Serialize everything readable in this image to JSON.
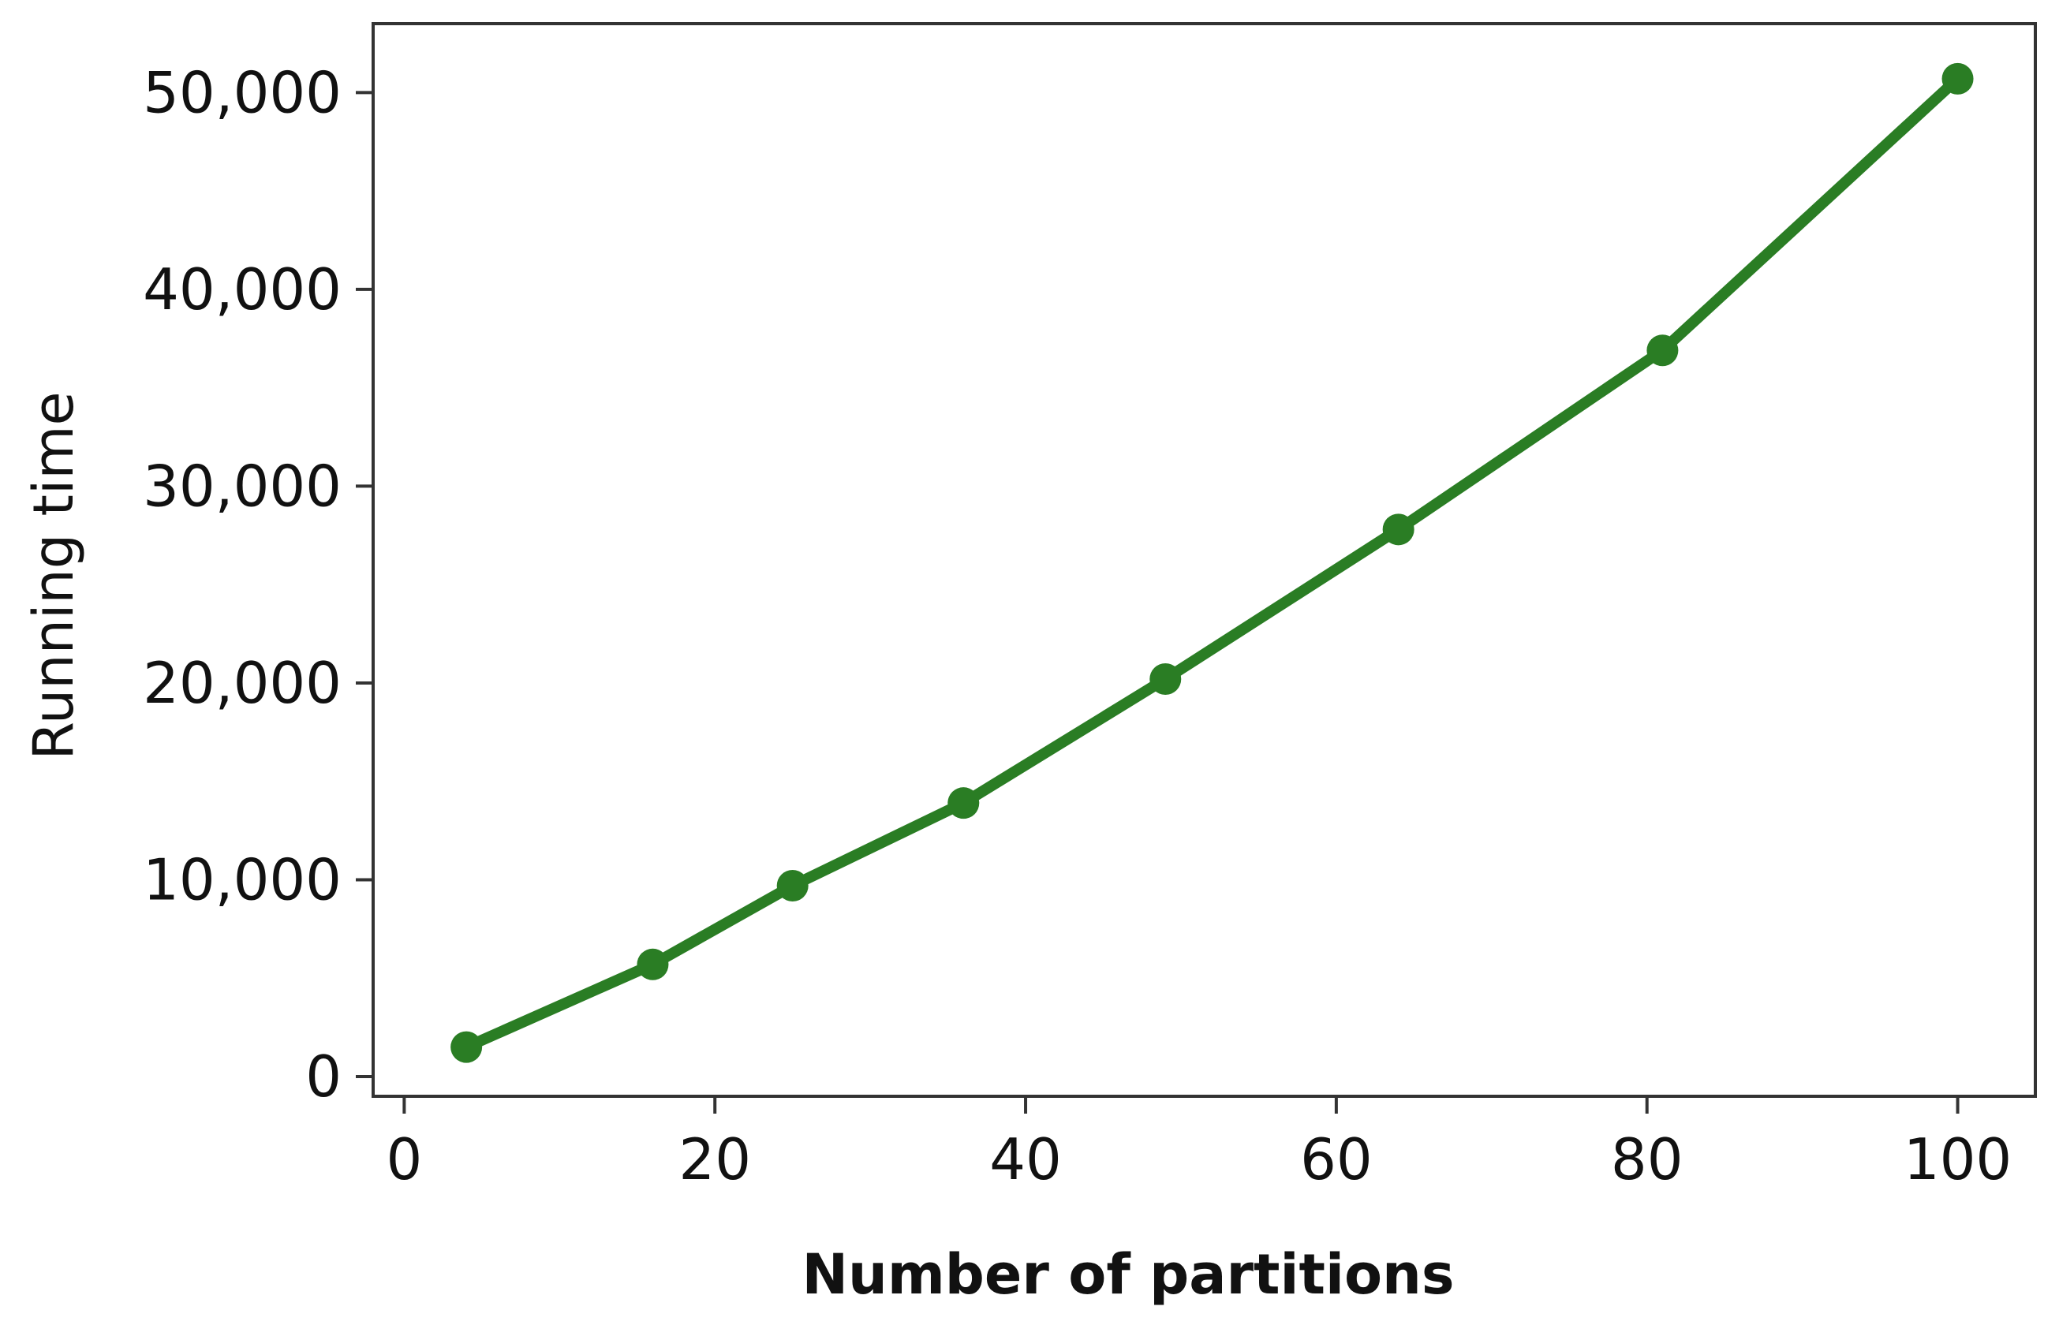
{
  "chart_data": {
    "type": "line",
    "title": "",
    "xlabel": "Number of partitions",
    "ylabel": "Running time",
    "xlim": [
      -2,
      105
    ],
    "ylim": [
      -1000,
      53500
    ],
    "x_ticks": [
      0,
      20,
      40,
      60,
      80,
      100
    ],
    "x_tick_labels": [
      "0",
      "20",
      "40",
      "60",
      "80",
      "100"
    ],
    "y_ticks": [
      0,
      10000,
      20000,
      30000,
      40000,
      50000
    ],
    "y_tick_labels": [
      "0",
      "10,000",
      "20,000",
      "30,000",
      "40,000",
      "50,000"
    ],
    "grid": false,
    "legend": "none",
    "series": [
      {
        "color": "#2a7d24",
        "x": [
          4,
          16,
          25,
          36,
          49,
          64,
          81,
          100
        ],
        "y": [
          1500,
          5700,
          9700,
          13900,
          20200,
          27800,
          36900,
          50700
        ]
      }
    ]
  }
}
